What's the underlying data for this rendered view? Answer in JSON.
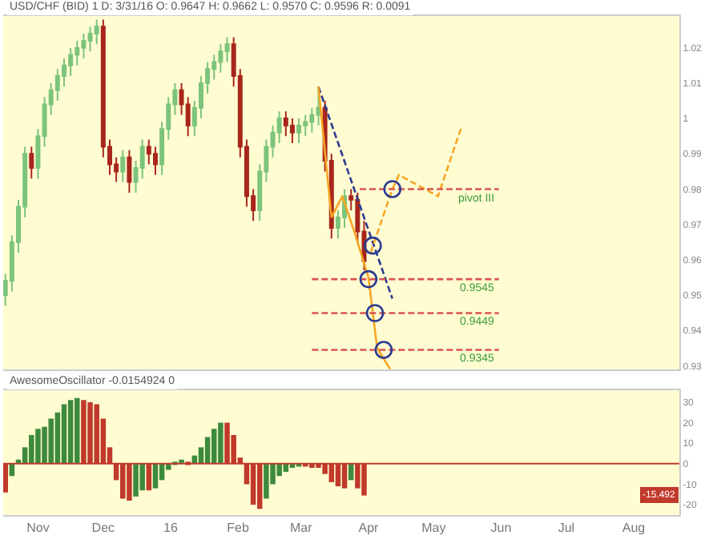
{
  "chart_data": [
    {
      "type": "candlestick",
      "title": "USD/CHF (BID) 1 D: 3/31/16 O: 0.9647 H: 0.9662 L: 0.9570 C: 0.9596 R: 0.0091",
      "x": [
        "2015-10-17",
        "2015-10-20",
        "2015-10-23",
        "2015-10-26",
        "2015-10-29",
        "2015-11-01",
        "2015-11-04",
        "2015-11-07",
        "2015-11-10",
        "2015-11-13",
        "2015-11-16",
        "2015-11-19",
        "2015-11-22",
        "2015-11-25",
        "2015-11-28",
        "2015-12-01",
        "2015-12-04",
        "2015-12-07",
        "2015-12-10",
        "2015-12-13",
        "2015-12-16",
        "2015-12-19",
        "2015-12-22",
        "2015-12-25",
        "2015-12-28",
        "2015-12-31",
        "2016-01-03",
        "2016-01-06",
        "2016-01-09",
        "2016-01-12",
        "2016-01-15",
        "2016-01-18",
        "2016-01-21",
        "2016-01-24",
        "2016-01-27",
        "2016-01-30",
        "2016-02-02",
        "2016-02-05",
        "2016-02-08",
        "2016-02-11",
        "2016-02-14",
        "2016-02-17",
        "2016-02-20",
        "2016-02-23",
        "2016-02-26",
        "2016-02-29",
        "2016-03-03",
        "2016-03-06",
        "2016-03-09",
        "2016-03-12",
        "2016-03-15",
        "2016-03-18",
        "2016-03-21",
        "2016-03-24",
        "2016-03-27",
        "2016-03-30"
      ],
      "ohlc": [
        [
          0.95,
          0.956,
          0.947,
          0.954
        ],
        [
          0.954,
          0.967,
          0.951,
          0.965
        ],
        [
          0.965,
          0.977,
          0.962,
          0.975
        ],
        [
          0.975,
          0.992,
          0.972,
          0.99
        ],
        [
          0.99,
          0.992,
          0.983,
          0.986
        ],
        [
          0.986,
          0.997,
          0.983,
          0.995
        ],
        [
          0.995,
          1.006,
          0.992,
          1.004
        ],
        [
          1.004,
          1.01,
          1.001,
          1.008
        ],
        [
          1.008,
          1.014,
          1.005,
          1.012
        ],
        [
          1.012,
          1.017,
          1.009,
          1.015
        ],
        [
          1.015,
          1.02,
          1.012,
          1.018
        ],
        [
          1.018,
          1.022,
          1.015,
          1.02
        ],
        [
          1.02,
          1.024,
          1.017,
          1.022
        ],
        [
          1.022,
          1.026,
          1.019,
          1.024
        ],
        [
          1.024,
          1.028,
          1.021,
          1.026
        ],
        [
          1.026,
          1.028,
          0.989,
          0.992
        ],
        [
          0.992,
          0.994,
          0.984,
          0.987
        ],
        [
          0.987,
          0.989,
          0.982,
          0.985
        ],
        [
          0.985,
          0.991,
          0.982,
          0.989
        ],
        [
          0.989,
          0.991,
          0.979,
          0.982
        ],
        [
          0.982,
          0.988,
          0.979,
          0.986
        ],
        [
          0.986,
          0.994,
          0.983,
          0.992
        ],
        [
          0.992,
          0.994,
          0.987,
          0.99
        ],
        [
          0.99,
          0.992,
          0.984,
          0.987
        ],
        [
          0.987,
          0.999,
          0.984,
          0.997
        ],
        [
          0.997,
          1.006,
          0.994,
          1.004
        ],
        [
          1.004,
          1.01,
          1.001,
          1.008
        ],
        [
          1.008,
          1.01,
          1.001,
          1.004
        ],
        [
          1.004,
          1.006,
          0.995,
          0.998
        ],
        [
          0.998,
          1.005,
          0.995,
          1.003
        ],
        [
          1.003,
          1.012,
          1.0,
          1.01
        ],
        [
          1.01,
          1.016,
          1.007,
          1.014
        ],
        [
          1.014,
          1.018,
          1.011,
          1.016
        ],
        [
          1.016,
          1.021,
          1.013,
          1.019
        ],
        [
          1.019,
          1.023,
          1.016,
          1.021
        ],
        [
          1.021,
          1.023,
          1.009,
          1.012
        ],
        [
          1.012,
          1.014,
          0.989,
          0.992
        ],
        [
          0.992,
          0.994,
          0.975,
          0.978
        ],
        [
          0.978,
          0.98,
          0.971,
          0.974
        ],
        [
          0.974,
          0.987,
          0.971,
          0.985
        ],
        [
          0.985,
          0.994,
          0.982,
          0.992
        ],
        [
          0.992,
          0.998,
          0.989,
          0.996
        ],
        [
          0.996,
          1.002,
          0.993,
          1.0
        ],
        [
          1.0,
          1.002,
          0.995,
          0.998
        ],
        [
          0.998,
          1.0,
          0.993,
          0.996
        ],
        [
          0.996,
          1.0,
          0.993,
          0.998
        ],
        [
          0.998,
          1.001,
          0.995,
          0.999
        ],
        [
          0.999,
          1.003,
          0.996,
          1.001
        ],
        [
          1.001,
          1.009,
          0.998,
          1.003
        ],
        [
          1.003,
          1.005,
          0.985,
          0.988
        ],
        [
          0.988,
          0.99,
          0.966,
          0.969
        ],
        [
          0.969,
          0.974,
          0.966,
          0.972
        ],
        [
          0.972,
          0.98,
          0.969,
          0.978
        ],
        [
          0.978,
          0.98,
          0.974,
          0.977
        ],
        [
          0.977,
          0.979,
          0.965,
          0.968
        ],
        [
          0.968,
          0.971,
          0.957,
          0.9596
        ]
      ],
      "colors": [
        "#7cc47c",
        "#7cc47c",
        "#7cc47c",
        "#7cc47c",
        "#a8261b",
        "#7cc47c",
        "#7cc47c",
        "#7cc47c",
        "#7cc47c",
        "#7cc47c",
        "#7cc47c",
        "#7cc47c",
        "#7cc47c",
        "#7cc47c",
        "#7cc47c",
        "#a8261b",
        "#a8261b",
        "#a8261b",
        "#7cc47c",
        "#a8261b",
        "#7cc47c",
        "#7cc47c",
        "#a8261b",
        "#a8261b",
        "#7cc47c",
        "#7cc47c",
        "#7cc47c",
        "#a8261b",
        "#a8261b",
        "#7cc47c",
        "#7cc47c",
        "#7cc47c",
        "#7cc47c",
        "#7cc47c",
        "#7cc47c",
        "#a8261b",
        "#a8261b",
        "#a8261b",
        "#a8261b",
        "#7cc47c",
        "#7cc47c",
        "#7cc47c",
        "#7cc47c",
        "#a8261b",
        "#a8261b",
        "#7cc47c",
        "#7cc47c",
        "#7cc47c",
        "#7cc47c",
        "#a8261b",
        "#a8261b",
        "#7cc47c",
        "#7cc47c",
        "#a8261b",
        "#a8261b",
        "#a8261b"
      ],
      "series": [
        {
          "type": "line",
          "color": "#2b3a8f",
          "line_style": "dashed",
          "x": [
            "2016-03-09",
            "2016-04-12"
          ],
          "values": [
            1.009,
            0.949
          ]
        },
        {
          "type": "line",
          "color": "#f5a623",
          "line_style": "solid",
          "x": [
            "2016-03-09",
            "2016-03-15",
            "2016-03-20",
            "2016-03-26",
            "2016-04-01",
            "2016-04-05",
            "2016-04-11"
          ],
          "values": [
            1.009,
            0.972,
            0.978,
            0.967,
            0.955,
            0.935,
            0.929
          ]
        },
        {
          "type": "line",
          "color": "#f5a623",
          "line_style": "dashed",
          "x": [
            "2016-04-02",
            "2016-04-12",
            "2016-04-15",
            "2016-05-03",
            "2016-05-14"
          ],
          "values": [
            0.962,
            0.98,
            0.984,
            0.978,
            0.998
          ]
        },
        {
          "type": "line",
          "name": "pivot III",
          "color": "#d9534f",
          "line_style": "dashed",
          "x": [
            "2016-03-28",
            "2016-05-31"
          ],
          "values": [
            0.98,
            0.98
          ]
        },
        {
          "type": "line",
          "name": "0.9545",
          "color": "#d9534f",
          "line_style": "dashed",
          "x": [
            "2016-03-06",
            "2016-05-31"
          ],
          "values": [
            0.9545,
            0.9545
          ]
        },
        {
          "type": "line",
          "name": "0.9449",
          "color": "#d9534f",
          "line_style": "dashed",
          "x": [
            "2016-03-06",
            "2016-05-31"
          ],
          "values": [
            0.9449,
            0.9449
          ]
        },
        {
          "type": "line",
          "name": "0.9345",
          "color": "#d9534f",
          "line_style": "dashed",
          "x": [
            "2016-03-06",
            "2016-05-31"
          ],
          "values": [
            0.9345,
            0.9345
          ]
        },
        {
          "type": "scatter",
          "marker": "circle",
          "color": "#2b3a8f",
          "x": [
            "2016-04-12",
            "2016-04-03",
            "2016-04-01",
            "2016-04-04",
            "2016-04-08"
          ],
          "values": [
            0.98,
            0.964,
            0.9545,
            0.9449,
            0.9345
          ]
        }
      ],
      "xlim": [
        "2015-10-16",
        "2016-08-22"
      ],
      "ylim": [
        0.929,
        1.029
      ],
      "yticks": [
        0.93,
        0.94,
        0.95,
        0.96,
        0.97,
        0.98,
        0.99,
        1,
        1.01,
        1.02
      ],
      "tick_labels": "y",
      "grid": false
    },
    {
      "type": "bar",
      "title": "AwesomeOscillator -0.0154924 0",
      "x": [
        "2015-10-17",
        "2015-10-20",
        "2015-10-23",
        "2015-10-26",
        "2015-10-29",
        "2015-11-01",
        "2015-11-04",
        "2015-11-07",
        "2015-11-10",
        "2015-11-13",
        "2015-11-16",
        "2015-11-19",
        "2015-11-22",
        "2015-11-25",
        "2015-11-28",
        "2015-12-01",
        "2015-12-04",
        "2015-12-07",
        "2015-12-10",
        "2015-12-13",
        "2015-12-16",
        "2015-12-19",
        "2015-12-22",
        "2015-12-25",
        "2015-12-28",
        "2015-12-31",
        "2016-01-03",
        "2016-01-06",
        "2016-01-09",
        "2016-01-12",
        "2016-01-15",
        "2016-01-18",
        "2016-01-21",
        "2016-01-24",
        "2016-01-27",
        "2016-01-30",
        "2016-02-02",
        "2016-02-05",
        "2016-02-08",
        "2016-02-11",
        "2016-02-14",
        "2016-02-17",
        "2016-02-20",
        "2016-02-23",
        "2016-02-26",
        "2016-02-29",
        "2016-03-03",
        "2016-03-06",
        "2016-03-09",
        "2016-03-12",
        "2016-03-15",
        "2016-03-18",
        "2016-03-21",
        "2016-03-24",
        "2016-03-27",
        "2016-03-30"
      ],
      "values": [
        -14,
        -6,
        2,
        8,
        14,
        17,
        18,
        22,
        25,
        29,
        31,
        32,
        31,
        30,
        29,
        22,
        8,
        -8,
        -17,
        -18,
        -16,
        -13,
        -13,
        -12,
        -8,
        -3,
        1,
        2,
        1,
        4,
        8,
        13,
        17,
        20,
        20,
        14,
        3,
        -10,
        -20,
        -22,
        -17,
        -10,
        -6,
        -4,
        -2,
        -1,
        -1,
        -2,
        -2,
        -5,
        -9,
        -11,
        -12,
        -8,
        -12,
        -15.492
      ],
      "colors": [
        "#c0392b",
        "#3d8a3d",
        "#3d8a3d",
        "#3d8a3d",
        "#3d8a3d",
        "#3d8a3d",
        "#3d8a3d",
        "#3d8a3d",
        "#3d8a3d",
        "#3d8a3d",
        "#3d8a3d",
        "#3d8a3d",
        "#c0392b",
        "#c0392b",
        "#c0392b",
        "#c0392b",
        "#c0392b",
        "#c0392b",
        "#c0392b",
        "#c0392b",
        "#3d8a3d",
        "#3d8a3d",
        "#c0392b",
        "#3d8a3d",
        "#3d8a3d",
        "#3d8a3d",
        "#3d8a3d",
        "#3d8a3d",
        "#c0392b",
        "#3d8a3d",
        "#3d8a3d",
        "#3d8a3d",
        "#3d8a3d",
        "#3d8a3d",
        "#c0392b",
        "#c0392b",
        "#c0392b",
        "#c0392b",
        "#c0392b",
        "#c0392b",
        "#3d8a3d",
        "#3d8a3d",
        "#3d8a3d",
        "#3d8a3d",
        "#3d8a3d",
        "#3d8a3d",
        "#c0392b",
        "#c0392b",
        "#c0392b",
        "#c0392b",
        "#c0392b",
        "#c0392b",
        "#c0392b",
        "#3d8a3d",
        "#c0392b",
        "#c0392b"
      ],
      "ref_lines": [
        {
          "axis": "y",
          "value": 0,
          "color": "#c0392b"
        }
      ],
      "annotations": [
        {
          "text": "-15.492",
          "y": -15.492
        }
      ],
      "xlim": [
        "2015-10-16",
        "2016-08-22"
      ],
      "xticks": [
        {
          "value": "2015-11-01",
          "label": "Nov"
        },
        {
          "value": "2015-12-01",
          "label": "Dec"
        },
        {
          "value": "2016-01-01",
          "label": "16"
        },
        {
          "value": "2016-02-01",
          "label": "Feb"
        },
        {
          "value": "2016-03-01",
          "label": "Mar"
        },
        {
          "value": "2016-04-01",
          "label": "Apr"
        },
        {
          "value": "2016-05-01",
          "label": "May"
        },
        {
          "value": "2016-06-01",
          "label": "Jun"
        },
        {
          "value": "2016-07-01",
          "label": "Jul"
        },
        {
          "value": "2016-08-01",
          "label": "Aug"
        }
      ],
      "ylim": [
        -25,
        36
      ],
      "yticks": [
        -20,
        -10,
        0,
        10,
        20,
        30
      ],
      "grid": false
    }
  ]
}
